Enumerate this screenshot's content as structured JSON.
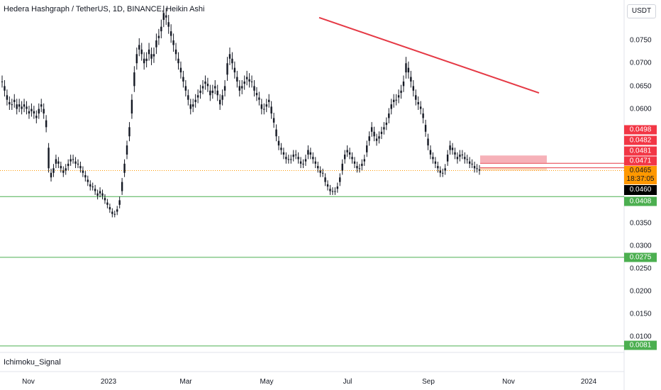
{
  "header": {
    "title": "Hedera Hashgraph / TetherUS, 1D, BINANCE, Heikin Ashi",
    "currency": "USDT"
  },
  "indicator": {
    "label": "Ichimoku_Signal"
  },
  "colors": {
    "candle": "#131722",
    "trendline": "#e53945",
    "support": "#4caf50",
    "resistance_zone": "#f5a3ab",
    "current_price": "#ff9800"
  },
  "chart_data": {
    "type": "candlestick",
    "style": "Heikin Ashi",
    "y_axis": {
      "ticks": [
        0.075,
        0.07,
        0.065,
        0.06,
        0.035,
        0.03,
        0.025,
        0.02,
        0.015,
        0.01
      ],
      "tick_labels": [
        "0.0750",
        "0.0700",
        "0.0650",
        "0.0600",
        "0.0350",
        "0.0300",
        "0.0250",
        "0.0200",
        "0.0150",
        "0.0100"
      ]
    },
    "x_axis": {
      "tick_labels": [
        "Nov",
        "2023",
        "Mar",
        "May",
        "Jul",
        "Sep",
        "Nov",
        "2024"
      ]
    },
    "closes_approx": [
      0.066,
      0.064,
      0.062,
      0.061,
      0.061,
      0.062,
      0.06,
      0.061,
      0.06,
      0.061,
      0.06,
      0.059,
      0.06,
      0.059,
      0.058,
      0.06,
      0.061,
      0.059,
      0.056,
      0.047,
      0.045,
      0.047,
      0.049,
      0.048,
      0.047,
      0.046,
      0.047,
      0.048,
      0.049,
      0.049,
      0.048,
      0.048,
      0.047,
      0.046,
      0.045,
      0.044,
      0.043,
      0.043,
      0.042,
      0.041,
      0.042,
      0.041,
      0.04,
      0.039,
      0.038,
      0.037,
      0.037,
      0.038,
      0.04,
      0.044,
      0.048,
      0.052,
      0.056,
      0.062,
      0.068,
      0.072,
      0.074,
      0.072,
      0.07,
      0.071,
      0.073,
      0.071,
      0.072,
      0.075,
      0.076,
      0.078,
      0.081,
      0.08,
      0.078,
      0.076,
      0.074,
      0.072,
      0.07,
      0.068,
      0.066,
      0.064,
      0.062,
      0.06,
      0.061,
      0.062,
      0.063,
      0.064,
      0.065,
      0.066,
      0.065,
      0.063,
      0.064,
      0.065,
      0.063,
      0.061,
      0.063,
      0.065,
      0.07,
      0.072,
      0.07,
      0.068,
      0.066,
      0.064,
      0.065,
      0.066,
      0.067,
      0.066,
      0.066,
      0.064,
      0.063,
      0.062,
      0.06,
      0.06,
      0.061,
      0.062,
      0.059,
      0.057,
      0.054,
      0.052,
      0.051,
      0.05,
      0.049,
      0.049,
      0.049,
      0.05,
      0.05,
      0.049,
      0.048,
      0.048,
      0.049,
      0.051,
      0.05,
      0.049,
      0.048,
      0.047,
      0.046,
      0.046,
      0.044,
      0.043,
      0.042,
      0.042,
      0.042,
      0.043,
      0.045,
      0.048,
      0.05,
      0.051,
      0.05,
      0.049,
      0.048,
      0.047,
      0.047,
      0.048,
      0.049,
      0.052,
      0.054,
      0.056,
      0.054,
      0.053,
      0.054,
      0.055,
      0.056,
      0.057,
      0.059,
      0.061,
      0.062,
      0.062,
      0.063,
      0.064,
      0.066,
      0.07,
      0.068,
      0.066,
      0.064,
      0.062,
      0.061,
      0.06,
      0.058,
      0.055,
      0.052,
      0.05,
      0.049,
      0.048,
      0.047,
      0.046,
      0.046,
      0.047,
      0.05,
      0.052,
      0.051,
      0.05,
      0.049,
      0.05,
      0.05,
      0.049,
      0.049,
      0.048,
      0.048,
      0.047,
      0.047,
      0.0465
    ],
    "trendline": {
      "start_price": 0.08,
      "end_price": 0.0635
    },
    "support_levels": [
      0.0408,
      0.0275,
      0.0081
    ],
    "resistance_zone": {
      "top": 0.0498,
      "bottom": 0.0482
    },
    "horizontal_levels": [
      0.0481,
      0.0471
    ],
    "current_price": {
      "label": "0.0465",
      "countdown": "18:37:05"
    },
    "last_price": "0.0460",
    "price_badges": {
      "zone_top": "0.0498",
      "zone_bottom": "0.0482",
      "level_a": "0.0481",
      "level_b": "0.0471",
      "last": "0.0460",
      "support_1": "0.0408",
      "support_2": "0.0275",
      "support_3": "0.0081"
    }
  }
}
